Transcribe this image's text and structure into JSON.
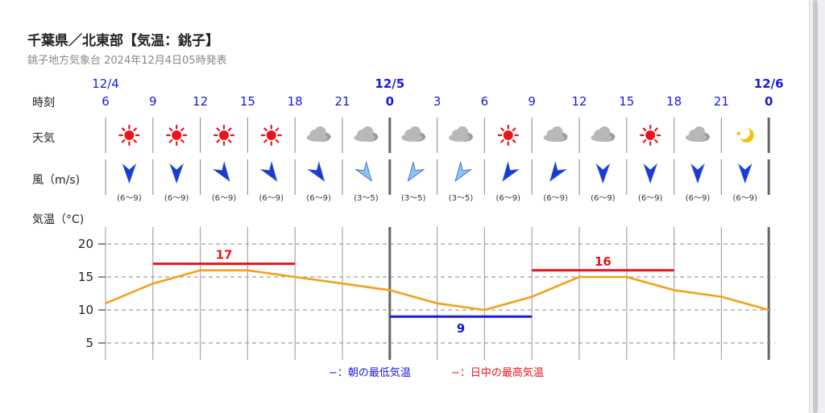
{
  "header": {
    "title": "千葉県／北東部【気温：銚子】",
    "subtitle": "銚子地方気象台 2024年12月4日05時発表"
  },
  "rows": {
    "time_label": "時刻",
    "weather_label": "天気",
    "wind_label": "風（m/s)",
    "temp_label": "気温（°C)"
  },
  "dates": [
    "12/4",
    "12/5",
    "12/6"
  ],
  "hours": [
    "6",
    "9",
    "12",
    "15",
    "18",
    "21",
    "0",
    "3",
    "6",
    "9",
    "12",
    "15",
    "18",
    "21",
    "0"
  ],
  "weather": [
    "sun-icon",
    "sun-icon",
    "sun-icon",
    "sun-icon",
    "cloud-icon",
    "cloud-icon",
    "cloud-icon",
    "cloud-icon",
    "sun-icon",
    "cloud-icon",
    "cloud-icon",
    "sun-icon",
    "cloud-icon",
    "moon-icon"
  ],
  "wind": [
    {
      "dir": "N",
      "range": "(6〜9)",
      "strength": "strong"
    },
    {
      "dir": "N",
      "range": "(6〜9)",
      "strength": "strong"
    },
    {
      "dir": "NE",
      "range": "(6〜9)",
      "strength": "strong"
    },
    {
      "dir": "NE",
      "range": "(6〜9)",
      "strength": "strong"
    },
    {
      "dir": "NE",
      "range": "(6〜9)",
      "strength": "strong"
    },
    {
      "dir": "NE",
      "range": "(3〜5)",
      "strength": "light"
    },
    {
      "dir": "NW",
      "range": "(3〜5)",
      "strength": "light"
    },
    {
      "dir": "NW",
      "range": "(3〜5)",
      "strength": "light"
    },
    {
      "dir": "NW",
      "range": "(6〜9)",
      "strength": "strong"
    },
    {
      "dir": "NW",
      "range": "(6〜9)",
      "strength": "strong"
    },
    {
      "dir": "N",
      "range": "(6〜9)",
      "strength": "strong"
    },
    {
      "dir": "N",
      "range": "(6〜9)",
      "strength": "strong"
    },
    {
      "dir": "N",
      "range": "(6〜9)",
      "strength": "strong"
    },
    {
      "dir": "N",
      "range": "(6〜9)",
      "strength": "strong"
    }
  ],
  "legend": {
    "min_label": "−：朝の最低気温",
    "max_label": "−：日中の最高気温"
  },
  "colors": {
    "accent_blue": "#1a1adb",
    "temp_line": "#f5a01a",
    "max_red": "#e8141e",
    "min_blue": "#1a1adb",
    "sun_red": "#e8141e",
    "cloud_gray": "#b8b8b8",
    "moon_yellow": "#f3c400",
    "wind_strong": "#1a3ad6",
    "wind_light": "#8cc4ee"
  },
  "chart_data": {
    "type": "line",
    "x": [
      "6",
      "9",
      "12",
      "15",
      "18",
      "21",
      "0",
      "3",
      "6",
      "9",
      "12",
      "15",
      "18",
      "21",
      "0"
    ],
    "ylim": [
      3,
      22
    ],
    "yticks": [
      5,
      10,
      15,
      20
    ],
    "grid": true,
    "series": [
      {
        "values": [
          11,
          14,
          16,
          16,
          15,
          14,
          13,
          11,
          10,
          12,
          15,
          15,
          13,
          12,
          10
        ]
      }
    ],
    "annotations": [
      {
        "kind": "max",
        "value": 17,
        "x_from": 1,
        "x_to": 4
      },
      {
        "kind": "min",
        "value": 9,
        "x_from": 6,
        "x_to": 9
      },
      {
        "kind": "max",
        "value": 16,
        "x_from": 9,
        "x_to": 12
      }
    ]
  }
}
